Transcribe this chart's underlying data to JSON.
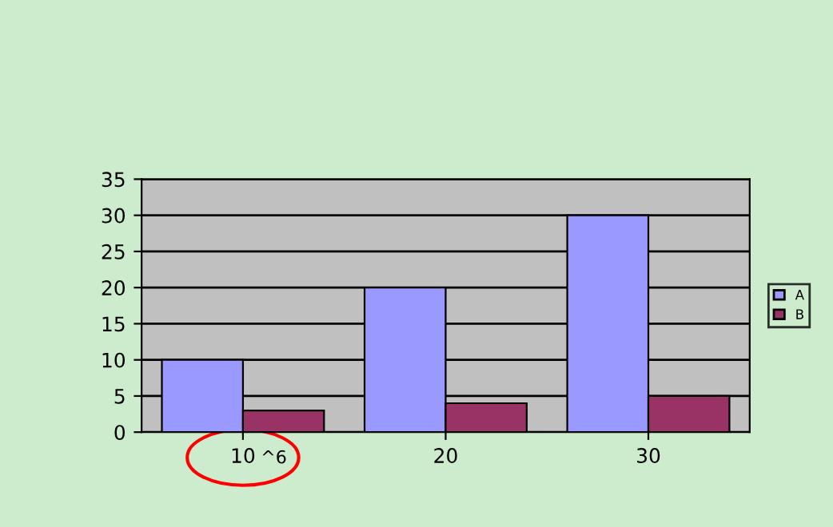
{
  "chart_data": {
    "type": "bar",
    "categories": [
      "10",
      "20",
      "30"
    ],
    "series": [
      {
        "name": "A",
        "color": "#9999ff",
        "values": [
          10,
          20,
          30
        ]
      },
      {
        "name": "B",
        "color": "#993366",
        "values": [
          3,
          4,
          5
        ]
      }
    ],
    "ylim": [
      0,
      35
    ],
    "yticks": [
      0,
      5,
      10,
      15,
      20,
      25,
      30,
      35
    ],
    "grid": "y",
    "legend": "right",
    "annotations": [
      "^6"
    ]
  }
}
